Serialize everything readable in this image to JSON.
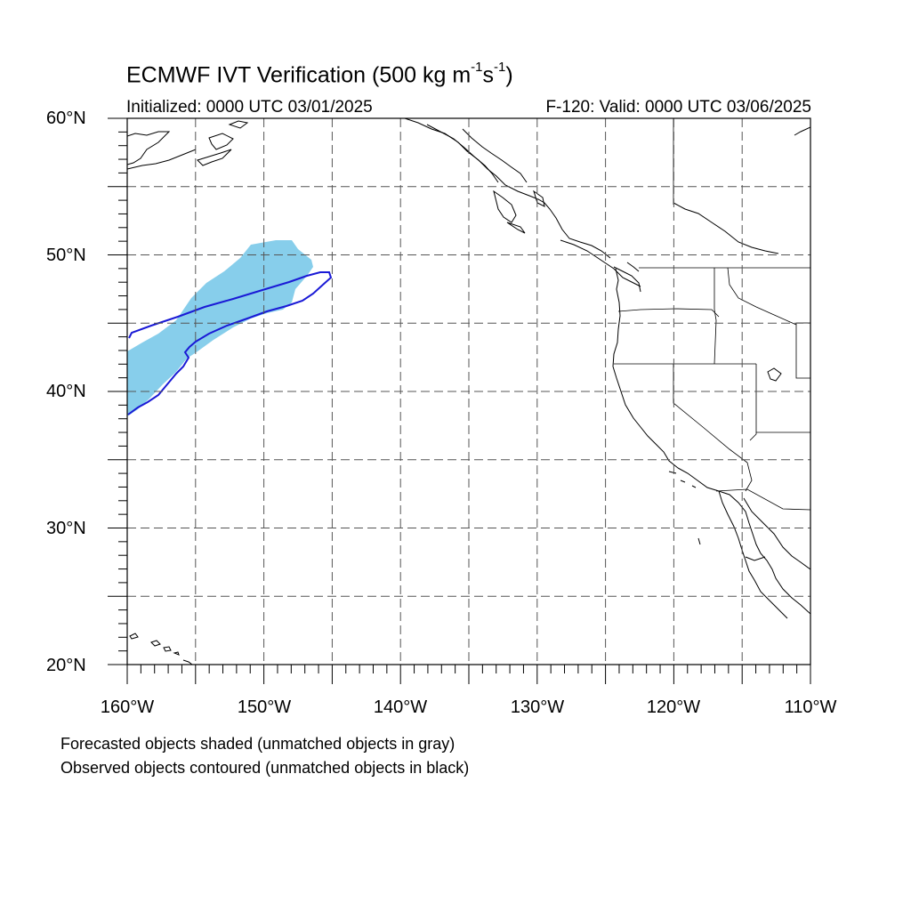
{
  "title": {
    "main": "ECMWF IVT Verification (500 kg m",
    "exp1": "-1",
    "mid": "s",
    "exp2": "-1",
    "close": ")"
  },
  "init_label": "Initialized: 0000 UTC 03/01/2025",
  "valid_label": "F-120: Valid: 0000 UTC 03/06/2025",
  "lat_labels": [
    "60°N",
    "50°N",
    "40°N",
    "30°N",
    "20°N"
  ],
  "lon_labels": [
    "160°W",
    "150°W",
    "140°W",
    "130°W",
    "120°W",
    "110°W"
  ],
  "footnotes": [
    "Forecasted objects shaded (unmatched objects in gray)",
    "Observed objects contoured (unmatched objects in black)"
  ],
  "colors": {
    "forecast_fill": "#87ceeb",
    "observed_contour": "#1a1ad6",
    "coastline": "#000000",
    "grid": "#555555"
  }
}
